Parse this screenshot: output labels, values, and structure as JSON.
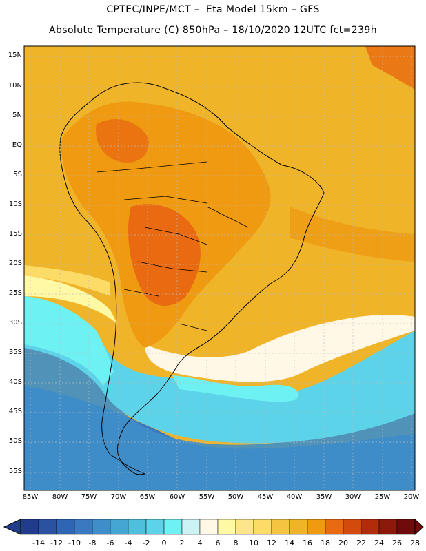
{
  "header": {
    "line1": "CPTEC/INPE/MCT –  Eta Model 15km – GFS",
    "line2": "Absolute Temperature (C) 850hPa – 18/10/2020 12UTC fct=239h"
  },
  "map": {
    "lat_labels": [
      "15N",
      "10N",
      "5N",
      "EQ",
      "5S",
      "10S",
      "15S",
      "20S",
      "25S",
      "30S",
      "35S",
      "40S",
      "45S",
      "50S",
      "55S"
    ],
    "lon_labels": [
      "85W",
      "80W",
      "75W",
      "70W",
      "65W",
      "60W",
      "55W",
      "50W",
      "45W",
      "40W",
      "35W",
      "30W",
      "25W",
      "20W"
    ]
  },
  "colorbar": {
    "labels": [
      "-14",
      "-12",
      "-10",
      "-8",
      "-6",
      "-4",
      "-2",
      "0",
      "2",
      "4",
      "6",
      "8",
      "10",
      "12",
      "14",
      "16",
      "18",
      "20",
      "22",
      "24",
      "26",
      "28"
    ],
    "colors": [
      "#213c8c",
      "#2a52a0",
      "#2f66b3",
      "#3a79bf",
      "#3f8ec9",
      "#45a6d3",
      "#4fbfde",
      "#5cd3e9",
      "#6ef1f3",
      "#cbf3f6",
      "#fff8e7",
      "#fff9a6",
      "#ffe58a",
      "#fcdb66",
      "#f5c542",
      "#f0b429",
      "#ef9a10",
      "#e96a10",
      "#d24a0c",
      "#b12c0b",
      "#8c1a0a",
      "#6e0c0c"
    ]
  }
}
